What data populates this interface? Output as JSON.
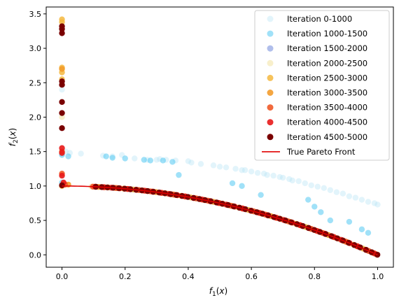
{
  "chart_data": {
    "type": "scatter",
    "xlabel": "f_1(x)",
    "ylabel": "f_2(x)",
    "xlim": [
      -0.05,
      1.05
    ],
    "ylim": [
      -0.18,
      3.6
    ],
    "xticks": [
      0.0,
      0.2,
      0.4,
      0.6,
      0.8,
      1.0
    ],
    "xtick_labels": [
      "0.0",
      "0.2",
      "0.4",
      "0.6",
      "0.8",
      "1.0"
    ],
    "yticks": [
      0.0,
      0.5,
      1.0,
      1.5,
      2.0,
      2.5,
      3.0,
      3.5
    ],
    "ytick_labels": [
      "0.0",
      "0.5",
      "1.0",
      "1.5",
      "2.0",
      "2.5",
      "3.0",
      "3.5"
    ],
    "grid": false,
    "legend_position": "top-right",
    "series": [
      {
        "name": "Iteration 0-1000",
        "color": "#b6e4f5",
        "alpha": 0.4,
        "points": [
          [
            0.0,
            1.46
          ],
          [
            0.012,
            1.5
          ],
          [
            0.025,
            1.48
          ],
          [
            0.06,
            1.47
          ],
          [
            0.13,
            1.44
          ],
          [
            0.16,
            1.43
          ],
          [
            0.19,
            1.45
          ],
          [
            0.23,
            1.4
          ],
          [
            0.27,
            1.38
          ],
          [
            0.3,
            1.38
          ],
          [
            0.31,
            1.39
          ],
          [
            0.33,
            1.38
          ],
          [
            0.36,
            1.37
          ],
          [
            0.4,
            1.36
          ],
          [
            0.41,
            1.34
          ],
          [
            0.44,
            1.32
          ],
          [
            0.48,
            1.3
          ],
          [
            0.5,
            1.28
          ],
          [
            0.52,
            1.27
          ],
          [
            0.55,
            1.25
          ],
          [
            0.57,
            1.23
          ],
          [
            0.58,
            1.23
          ],
          [
            0.6,
            1.21
          ],
          [
            0.62,
            1.19
          ],
          [
            0.64,
            1.18
          ],
          [
            0.65,
            1.16
          ],
          [
            0.67,
            1.15
          ],
          [
            0.69,
            1.13
          ],
          [
            0.7,
            1.12
          ],
          [
            0.72,
            1.1
          ],
          [
            0.73,
            1.08
          ],
          [
            0.75,
            1.07
          ],
          [
            0.77,
            1.04
          ],
          [
            0.79,
            1.01
          ],
          [
            0.81,
            0.99
          ],
          [
            0.83,
            0.97
          ],
          [
            0.85,
            0.94
          ],
          [
            0.87,
            0.91
          ],
          [
            0.89,
            0.89
          ],
          [
            0.91,
            0.85
          ],
          [
            0.93,
            0.83
          ],
          [
            0.95,
            0.8
          ],
          [
            0.97,
            0.77
          ],
          [
            0.99,
            0.75
          ],
          [
            1.0,
            0.73
          ],
          [
            0.0,
            2.4
          ],
          [
            0.0,
            2.05
          ]
        ]
      },
      {
        "name": "Iteration 1000-1500",
        "color": "#52c8f2",
        "alpha": 0.55,
        "points": [
          [
            0.0,
            1.45
          ],
          [
            0.02,
            1.43
          ],
          [
            0.14,
            1.43
          ],
          [
            0.16,
            1.41
          ],
          [
            0.2,
            1.4
          ],
          [
            0.26,
            1.38
          ],
          [
            0.28,
            1.37
          ],
          [
            0.32,
            1.37
          ],
          [
            0.35,
            1.35
          ],
          [
            0.37,
            1.16
          ],
          [
            0.54,
            1.04
          ],
          [
            0.57,
            1.0
          ],
          [
            0.63,
            0.87
          ],
          [
            0.78,
            0.8
          ],
          [
            0.8,
            0.7
          ],
          [
            0.82,
            0.62
          ],
          [
            0.85,
            0.5
          ],
          [
            0.91,
            0.48
          ],
          [
            0.95,
            0.37
          ],
          [
            0.97,
            0.32
          ],
          [
            0.0,
            1.05
          ],
          [
            0.01,
            1.02
          ]
        ]
      },
      {
        "name": "Iteration 1500-2000",
        "color": "#7b93dd",
        "alpha": 0.6,
        "front": true,
        "n": 40
      },
      {
        "name": "Iteration 2000-2500",
        "color": "#f3e5a8",
        "alpha": 0.6,
        "front": true,
        "n": 30,
        "extra": [
          [
            0.0,
            2.7
          ],
          [
            0.0,
            2.0
          ],
          [
            0.0,
            1.5
          ]
        ]
      },
      {
        "name": "Iteration 2500-3000",
        "color": "#f5b940",
        "alpha": 0.85,
        "front": true,
        "n": 30,
        "extra": [
          [
            0.0,
            3.42
          ],
          [
            0.0,
            3.38
          ],
          [
            0.0,
            2.72
          ],
          [
            0.0,
            2.65
          ],
          [
            0.0,
            2.55
          ],
          [
            0.0,
            1.0
          ]
        ]
      },
      {
        "name": "Iteration 3000-3500",
        "color": "#f39c2c",
        "alpha": 0.9,
        "front": true,
        "n": 30,
        "extra": [
          [
            0.0,
            2.7
          ],
          [
            0.005,
            1.03
          ],
          [
            0.02,
            1.02
          ]
        ]
      },
      {
        "name": "Iteration 3500-4000",
        "color": "#f05a28",
        "alpha": 0.9,
        "front": true,
        "n": 25,
        "extra": [
          [
            0.0,
            1.5
          ],
          [
            0.0,
            1.18
          ],
          [
            0.01,
            1.02
          ]
        ]
      },
      {
        "name": "Iteration 4000-4500",
        "color": "#e81a1a",
        "alpha": 0.9,
        "front": true,
        "n": 35,
        "extra": [
          [
            0.0,
            1.55
          ],
          [
            0.0,
            1.48
          ],
          [
            0.0,
            1.15
          ],
          [
            0.005,
            1.05
          ]
        ]
      },
      {
        "name": "Iteration 4500-5000",
        "color": "#7a0000",
        "alpha": 1.0,
        "front": true,
        "n": 50,
        "extra": [
          [
            0.0,
            3.32
          ],
          [
            0.0,
            3.28
          ],
          [
            0.0,
            3.22
          ],
          [
            0.0,
            2.52
          ],
          [
            0.0,
            2.47
          ],
          [
            0.0,
            2.22
          ],
          [
            0.0,
            2.06
          ],
          [
            0.0,
            1.84
          ],
          [
            0.0,
            1.01
          ]
        ]
      }
    ],
    "line": {
      "name": "True Pareto Front",
      "color": "#e00000",
      "equation": "y = 1 - x^2"
    },
    "front_start": 0.09
  }
}
